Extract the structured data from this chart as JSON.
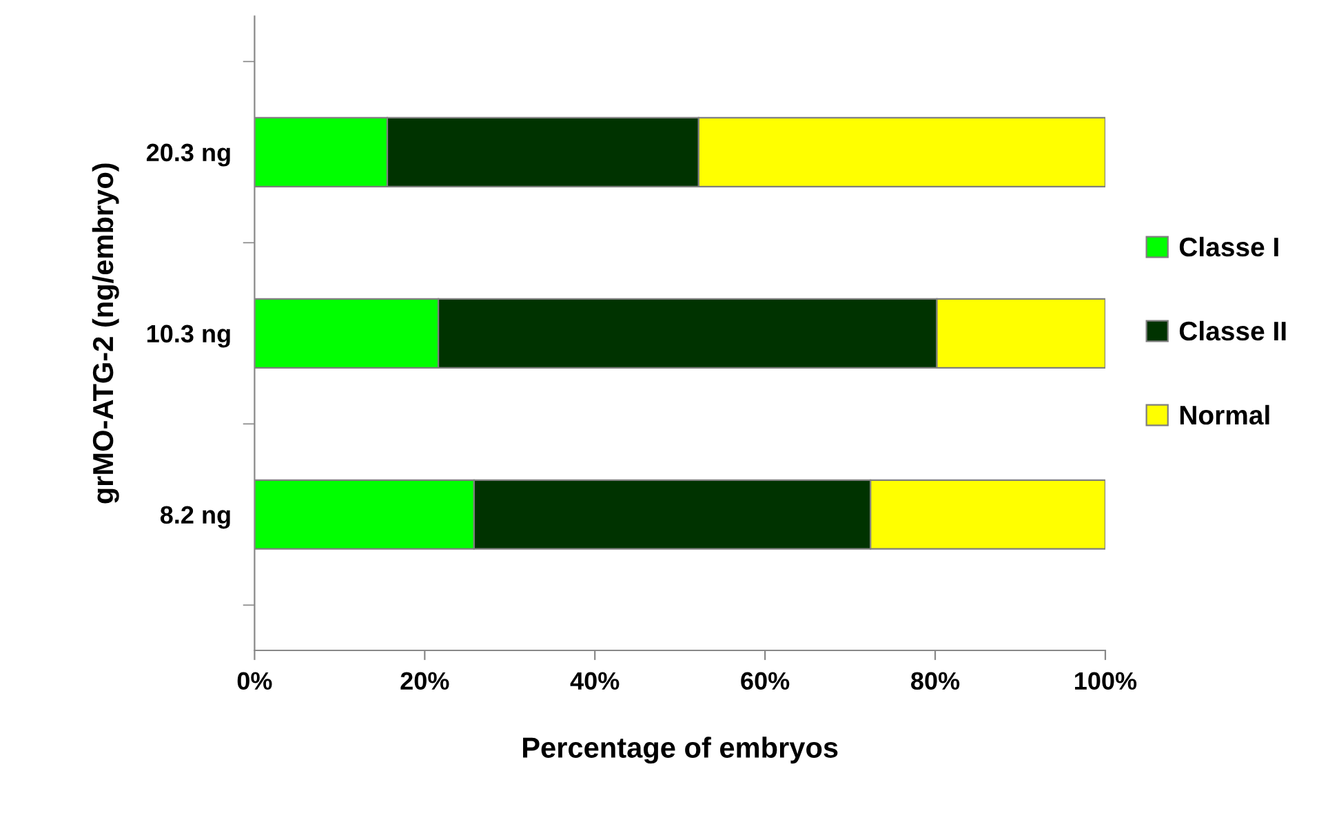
{
  "chart_data": {
    "type": "bar",
    "orientation": "horizontal",
    "stacked": true,
    "xlabel": "Percentage of embryos",
    "ylabel": "grMO-ATG-2 (ng/embryo)",
    "categories": [
      "20.3 ng",
      "10.3 ng",
      "8.2 ng"
    ],
    "series": [
      {
        "name": "Classe I",
        "color": "#00ff00",
        "values": [
          15.6,
          21.6,
          25.8
        ]
      },
      {
        "name": "Classe II",
        "color": "#003300",
        "values": [
          36.6,
          58.6,
          46.6
        ]
      },
      {
        "name": "Normal",
        "color": "#ffff00",
        "values": [
          47.8,
          19.8,
          27.6
        ]
      }
    ],
    "xlim": [
      0,
      100
    ],
    "xticks": [
      {
        "value": 0,
        "label": "0%"
      },
      {
        "value": 20,
        "label": "20%"
      },
      {
        "value": 40,
        "label": "40%"
      },
      {
        "value": 60,
        "label": "60%"
      },
      {
        "value": 80,
        "label": "80%"
      },
      {
        "value": 100,
        "label": "100%"
      }
    ],
    "grid": false,
    "legend": "right"
  }
}
